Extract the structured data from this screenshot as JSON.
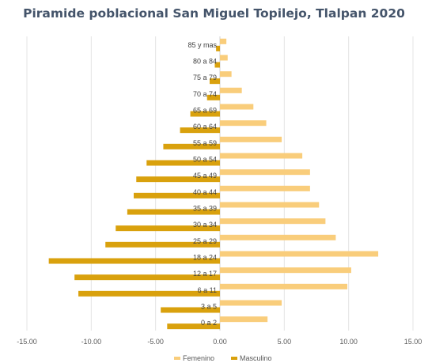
{
  "chart_data": {
    "type": "bar",
    "orientation": "horizontal",
    "title": "Piramide poblacional San Miguel Topilejo, Tlalpan 2020",
    "xlabel": "",
    "ylabel": "",
    "categories": [
      "85 y mas",
      "80 a 84",
      "75 a 79",
      "70 a 74",
      "65 a 69",
      "60 a 64",
      "55 a 59",
      "50 a 54",
      "45 a 49",
      "40 a 44",
      "35 a 39",
      "30 a 34",
      "25 a 29",
      "18 a 24",
      "12 a 17",
      "6 a 11",
      "3 a 5",
      "0 a 2"
    ],
    "series": [
      {
        "name": "Femenino",
        "color": "#f9cd7b",
        "values": [
          0.5,
          0.6,
          0.9,
          1.7,
          2.6,
          3.6,
          4.8,
          6.4,
          7.0,
          7.0,
          7.7,
          8.2,
          9.0,
          12.3,
          10.2,
          9.9,
          4.8,
          3.7
        ]
      },
      {
        "name": "Masculino",
        "color": "#d9a10d",
        "values": [
          -0.3,
          -0.4,
          -0.8,
          -1.0,
          -2.3,
          -3.1,
          -4.4,
          -5.7,
          -6.5,
          -6.7,
          -7.2,
          -8.1,
          -8.9,
          -13.3,
          -11.3,
          -11.0,
          -4.6,
          -4.1
        ]
      }
    ],
    "xlim": [
      -15,
      15
    ],
    "xticks": [
      -15,
      -10,
      -5,
      0,
      5,
      10,
      15
    ],
    "xtick_labels": [
      "-15.00",
      "-10.00",
      "-5.00",
      "0.00",
      "5.00",
      "10.00",
      "15.00"
    ],
    "grid": true,
    "legend_position": "bottom"
  }
}
